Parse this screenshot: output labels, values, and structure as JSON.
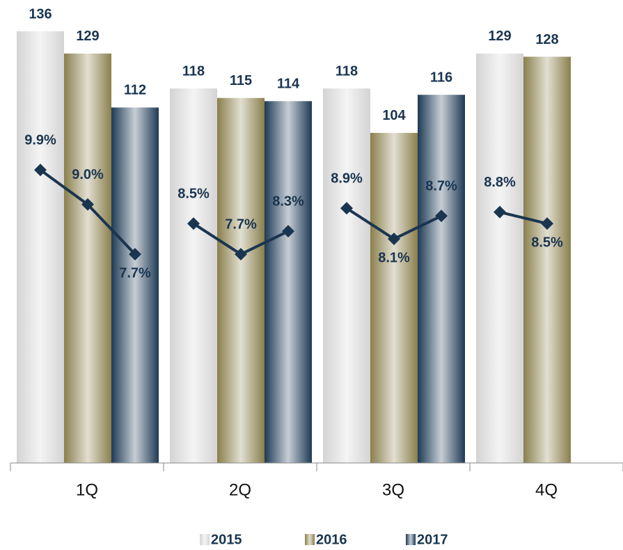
{
  "chart_data": {
    "type": "bar",
    "categories": [
      "1Q",
      "2Q",
      "3Q",
      "4Q"
    ],
    "series": [
      {
        "name": "2015",
        "color": "#d4d4d4",
        "values": [
          136,
          118,
          118,
          129
        ]
      },
      {
        "name": "2016",
        "color": "#8a7f4c",
        "values": [
          129,
          115,
          104,
          128
        ]
      },
      {
        "name": "2017",
        "color": "#1e3a55",
        "values": [
          112,
          114,
          116,
          null
        ]
      }
    ],
    "ylim": [
      0,
      136
    ],
    "margins": {
      "color": "#1a3550",
      "axis": "y2",
      "values": [
        [
          9.9,
          9.0,
          7.7
        ],
        [
          8.5,
          7.7,
          8.3
        ],
        [
          8.9,
          8.1,
          8.7
        ],
        [
          8.8,
          8.5
        ]
      ],
      "value_labels": [
        [
          "9.9%",
          "9.0%",
          "7.7%"
        ],
        [
          "8.5%",
          "7.7%",
          "8.3%"
        ],
        [
          "8.9%",
          "8.1%",
          "8.7%"
        ],
        [
          "8.8%",
          "8.5%"
        ]
      ]
    },
    "y2lim": [
      2.25,
      13.52
    ],
    "legend": "bottom"
  }
}
